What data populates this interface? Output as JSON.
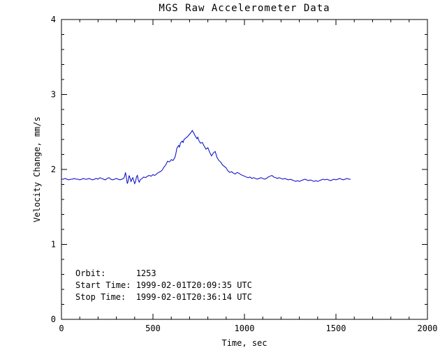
{
  "chart_data": {
    "type": "line",
    "title": "MGS Raw Accelerometer Data",
    "xlabel": "Time, sec",
    "ylabel": "Velocity Change, mm/s",
    "xlim": [
      0,
      2000
    ],
    "ylim": [
      0,
      4
    ],
    "xticks": [
      0,
      500,
      1000,
      1500,
      2000
    ],
    "yticks": [
      0,
      1,
      2,
      3,
      4
    ],
    "x_minor_step": 100,
    "y_minor_step": 0.2,
    "grid": false,
    "legend": "none",
    "line_color": "#0000C8",
    "series": [
      {
        "name": "velocity_change",
        "points": [
          [
            0,
            1.87
          ],
          [
            10,
            1.87
          ],
          [
            20,
            1.88
          ],
          [
            30,
            1.87
          ],
          [
            40,
            1.86
          ],
          [
            50,
            1.87
          ],
          [
            60,
            1.87
          ],
          [
            70,
            1.88
          ],
          [
            80,
            1.87
          ],
          [
            90,
            1.87
          ],
          [
            100,
            1.86
          ],
          [
            110,
            1.87
          ],
          [
            120,
            1.88
          ],
          [
            130,
            1.87
          ],
          [
            140,
            1.87
          ],
          [
            150,
            1.88
          ],
          [
            160,
            1.87
          ],
          [
            170,
            1.86
          ],
          [
            180,
            1.87
          ],
          [
            190,
            1.88
          ],
          [
            200,
            1.87
          ],
          [
            210,
            1.89
          ],
          [
            220,
            1.88
          ],
          [
            230,
            1.87
          ],
          [
            240,
            1.86
          ],
          [
            250,
            1.88
          ],
          [
            260,
            1.89
          ],
          [
            270,
            1.87
          ],
          [
            280,
            1.86
          ],
          [
            290,
            1.87
          ],
          [
            300,
            1.88
          ],
          [
            310,
            1.87
          ],
          [
            320,
            1.86
          ],
          [
            330,
            1.87
          ],
          [
            340,
            1.88
          ],
          [
            345,
            1.91
          ],
          [
            350,
            1.96
          ],
          [
            355,
            1.89
          ],
          [
            360,
            1.81
          ],
          [
            365,
            1.85
          ],
          [
            370,
            1.92
          ],
          [
            375,
            1.88
          ],
          [
            380,
            1.84
          ],
          [
            385,
            1.87
          ],
          [
            390,
            1.89
          ],
          [
            395,
            1.85
          ],
          [
            400,
            1.81
          ],
          [
            405,
            1.84
          ],
          [
            410,
            1.9
          ],
          [
            415,
            1.92
          ],
          [
            420,
            1.86
          ],
          [
            425,
            1.83
          ],
          [
            430,
            1.86
          ],
          [
            440,
            1.88
          ],
          [
            450,
            1.9
          ],
          [
            460,
            1.89
          ],
          [
            470,
            1.91
          ],
          [
            480,
            1.92
          ],
          [
            490,
            1.91
          ],
          [
            500,
            1.93
          ],
          [
            510,
            1.92
          ],
          [
            520,
            1.94
          ],
          [
            530,
            1.96
          ],
          [
            540,
            1.97
          ],
          [
            550,
            1.99
          ],
          [
            560,
            2.03
          ],
          [
            570,
            2.06
          ],
          [
            580,
            2.11
          ],
          [
            590,
            2.1
          ],
          [
            600,
            2.13
          ],
          [
            610,
            2.12
          ],
          [
            620,
            2.16
          ],
          [
            625,
            2.21
          ],
          [
            630,
            2.28
          ],
          [
            640,
            2.32
          ],
          [
            645,
            2.3
          ],
          [
            650,
            2.35
          ],
          [
            660,
            2.38
          ],
          [
            665,
            2.36
          ],
          [
            670,
            2.4
          ],
          [
            680,
            2.42
          ],
          [
            690,
            2.44
          ],
          [
            700,
            2.47
          ],
          [
            710,
            2.5
          ],
          [
            715,
            2.52
          ],
          [
            720,
            2.5
          ],
          [
            730,
            2.45
          ],
          [
            740,
            2.41
          ],
          [
            745,
            2.43
          ],
          [
            750,
            2.39
          ],
          [
            760,
            2.35
          ],
          [
            770,
            2.36
          ],
          [
            780,
            2.31
          ],
          [
            790,
            2.27
          ],
          [
            800,
            2.29
          ],
          [
            810,
            2.23
          ],
          [
            820,
            2.18
          ],
          [
            830,
            2.22
          ],
          [
            840,
            2.24
          ],
          [
            845,
            2.2
          ],
          [
            850,
            2.16
          ],
          [
            860,
            2.12
          ],
          [
            870,
            2.1
          ],
          [
            880,
            2.06
          ],
          [
            890,
            2.04
          ],
          [
            900,
            2.02
          ],
          [
            910,
            1.98
          ],
          [
            920,
            1.96
          ],
          [
            930,
            1.97
          ],
          [
            940,
            1.95
          ],
          [
            950,
            1.94
          ],
          [
            960,
            1.96
          ],
          [
            970,
            1.95
          ],
          [
            980,
            1.93
          ],
          [
            990,
            1.92
          ],
          [
            1000,
            1.91
          ],
          [
            1010,
            1.9
          ],
          [
            1020,
            1.89
          ],
          [
            1030,
            1.9
          ],
          [
            1040,
            1.88
          ],
          [
            1050,
            1.89
          ],
          [
            1060,
            1.88
          ],
          [
            1070,
            1.87
          ],
          [
            1080,
            1.88
          ],
          [
            1090,
            1.89
          ],
          [
            1100,
            1.88
          ],
          [
            1110,
            1.87
          ],
          [
            1120,
            1.88
          ],
          [
            1130,
            1.9
          ],
          [
            1140,
            1.91
          ],
          [
            1150,
            1.92
          ],
          [
            1160,
            1.9
          ],
          [
            1170,
            1.89
          ],
          [
            1180,
            1.88
          ],
          [
            1190,
            1.89
          ],
          [
            1200,
            1.88
          ],
          [
            1210,
            1.87
          ],
          [
            1220,
            1.88
          ],
          [
            1230,
            1.87
          ],
          [
            1240,
            1.86
          ],
          [
            1250,
            1.87
          ],
          [
            1260,
            1.86
          ],
          [
            1270,
            1.85
          ],
          [
            1280,
            1.84
          ],
          [
            1290,
            1.85
          ],
          [
            1300,
            1.84
          ],
          [
            1310,
            1.85
          ],
          [
            1320,
            1.86
          ],
          [
            1330,
            1.87
          ],
          [
            1340,
            1.86
          ],
          [
            1350,
            1.85
          ],
          [
            1360,
            1.86
          ],
          [
            1370,
            1.85
          ],
          [
            1380,
            1.84
          ],
          [
            1390,
            1.85
          ],
          [
            1400,
            1.84
          ],
          [
            1410,
            1.85
          ],
          [
            1420,
            1.86
          ],
          [
            1430,
            1.87
          ],
          [
            1440,
            1.86
          ],
          [
            1450,
            1.87
          ],
          [
            1460,
            1.86
          ],
          [
            1470,
            1.85
          ],
          [
            1480,
            1.86
          ],
          [
            1490,
            1.87
          ],
          [
            1500,
            1.86
          ],
          [
            1510,
            1.87
          ],
          [
            1520,
            1.88
          ],
          [
            1530,
            1.87
          ],
          [
            1540,
            1.86
          ],
          [
            1550,
            1.87
          ],
          [
            1560,
            1.88
          ],
          [
            1570,
            1.87
          ],
          [
            1580,
            1.87
          ]
        ]
      }
    ]
  },
  "annotations": {
    "orbit_label": "Orbit:",
    "orbit_value": "1253",
    "start_time_label": "Start Time:",
    "start_time_value": "1999-02-01T20:09:35 UTC",
    "stop_time_label": "Stop Time:",
    "stop_time_value": "1999-02-01T20:36:14 UTC",
    "lines": [
      "Orbit:      1253",
      "Start Time: 1999-02-01T20:09:35 UTC",
      "Stop Time:  1999-02-01T20:36:14 UTC"
    ]
  }
}
